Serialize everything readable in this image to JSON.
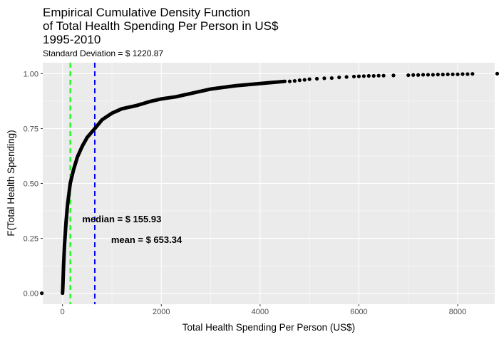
{
  "chart_data": {
    "type": "scatter",
    "title": [
      "Empirical Cumulative Density Function",
      "of Total Health Spending Per Person in US$",
      "1995-2010"
    ],
    "subtitle": "Standard Deviation = $ 1220.87",
    "xlabel": "Total Health Spending Per Person (US$)",
    "ylabel": "F(Total Health Spending)",
    "xlim": [
      -400,
      8750
    ],
    "ylim": [
      -0.05,
      1.05
    ],
    "x_ticks": [
      0,
      2000,
      4000,
      6000,
      8000
    ],
    "x_tick_labels": [
      "0",
      "2000",
      "4000",
      "6000",
      "8000"
    ],
    "y_ticks": [
      0,
      0.25,
      0.5,
      0.75,
      1.0
    ],
    "y_tick_labels": [
      "0.00",
      "0.25",
      "0.50",
      "0.75",
      "1.00"
    ],
    "grid": true,
    "reference_lines": [
      {
        "name": "median",
        "x": 155.93,
        "color": "#00ff00",
        "style": "dashed"
      },
      {
        "name": "mean",
        "x": 653.34,
        "color": "#0000ff",
        "style": "dashed"
      }
    ],
    "annotations": [
      {
        "text": "median = $ 155.93",
        "x": 1200,
        "y": 0.34
      },
      {
        "text": "mean = $ 653.34",
        "x": 1700,
        "y": 0.245
      }
    ],
    "ecdf_knots": [
      [
        0,
        0
      ],
      [
        5,
        0.02
      ],
      [
        20,
        0.12
      ],
      [
        40,
        0.22
      ],
      [
        70,
        0.32
      ],
      [
        100,
        0.4
      ],
      [
        155.93,
        0.5
      ],
      [
        220,
        0.56
      ],
      [
        300,
        0.62
      ],
      [
        400,
        0.67
      ],
      [
        500,
        0.71
      ],
      [
        653.34,
        0.75
      ],
      [
        800,
        0.79
      ],
      [
        1000,
        0.82
      ],
      [
        1200,
        0.84
      ],
      [
        1500,
        0.855
      ],
      [
        1800,
        0.875
      ],
      [
        2000,
        0.885
      ],
      [
        2300,
        0.895
      ],
      [
        2600,
        0.91
      ],
      [
        3000,
        0.93
      ],
      [
        3500,
        0.945
      ],
      [
        4000,
        0.955
      ],
      [
        4500,
        0.965
      ],
      [
        5000,
        0.975
      ],
      [
        5500,
        0.982
      ],
      [
        6000,
        0.988
      ],
      [
        7000,
        0.993
      ],
      [
        8000,
        0.997
      ],
      [
        8800,
        1.0
      ]
    ],
    "ecdf_range": [
      0,
      4500
    ],
    "points": [
      [
        -420,
        0
      ],
      [
        4600,
        0.965
      ],
      [
        4700,
        0.967
      ],
      [
        4800,
        0.97
      ],
      [
        4900,
        0.972
      ],
      [
        5000,
        0.975
      ],
      [
        5150,
        0.977
      ],
      [
        5300,
        0.979
      ],
      [
        5450,
        0.98
      ],
      [
        5600,
        0.983
      ],
      [
        5750,
        0.985
      ],
      [
        5900,
        0.987
      ],
      [
        6000,
        0.988
      ],
      [
        6100,
        0.989
      ],
      [
        6200,
        0.99
      ],
      [
        6300,
        0.99
      ],
      [
        6400,
        0.991
      ],
      [
        6500,
        0.991
      ],
      [
        6700,
        0.992
      ],
      [
        7000,
        0.993
      ],
      [
        7100,
        0.994
      ],
      [
        7200,
        0.994
      ],
      [
        7300,
        0.995
      ],
      [
        7400,
        0.995
      ],
      [
        7500,
        0.995
      ],
      [
        7600,
        0.996
      ],
      [
        7700,
        0.996
      ],
      [
        7800,
        0.997
      ],
      [
        7900,
        0.997
      ],
      [
        8000,
        0.997
      ],
      [
        8100,
        0.998
      ],
      [
        8200,
        0.998
      ],
      [
        8300,
        0.999
      ],
      [
        8800,
        1.0
      ]
    ]
  }
}
